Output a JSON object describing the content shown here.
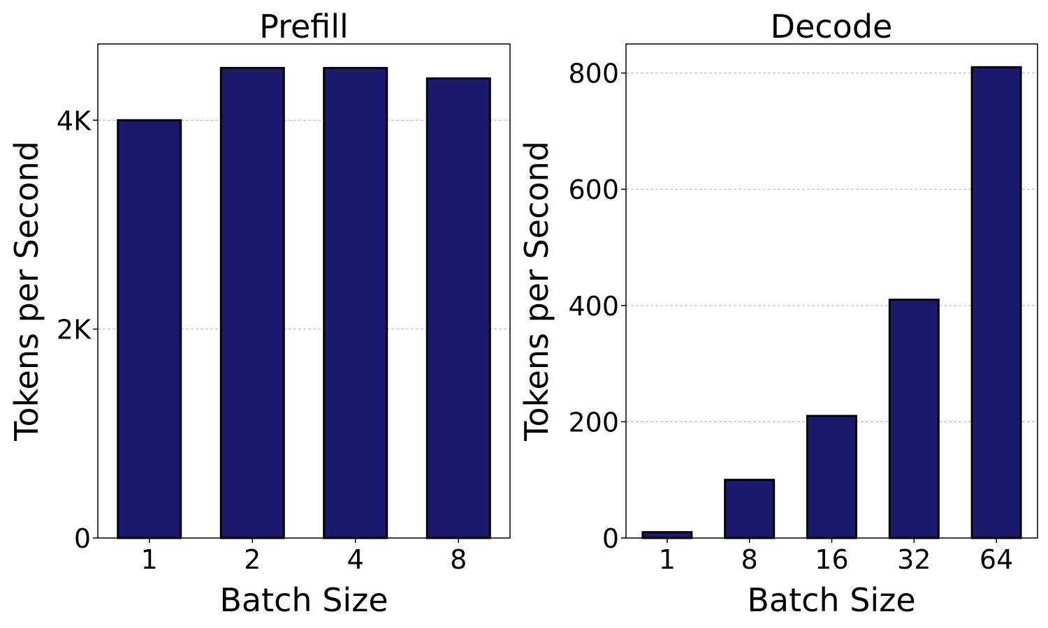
{
  "chart_data": [
    {
      "type": "bar",
      "title": "Prefill",
      "xlabel": "Batch Size",
      "ylabel": "Tokens per Second",
      "categories": [
        "1",
        "2",
        "4",
        "8"
      ],
      "values": [
        4000,
        4500,
        4500,
        4400
      ],
      "ylim": [
        0,
        4730
      ],
      "yticks": [
        0,
        2000,
        4000
      ],
      "ytick_labels": [
        "0",
        "2K",
        "4K"
      ],
      "grid": true,
      "bar_color": "#1b1a6e"
    },
    {
      "type": "bar",
      "title": "Decode",
      "xlabel": "Batch Size",
      "ylabel": "Tokens per Second",
      "categories": [
        "1",
        "8",
        "16",
        "32",
        "64"
      ],
      "values": [
        10,
        100,
        210,
        410,
        810
      ],
      "ylim": [
        0,
        850
      ],
      "yticks": [
        0,
        200,
        400,
        600,
        800
      ],
      "ytick_labels": [
        "0",
        "200",
        "400",
        "600",
        "800"
      ],
      "grid": true,
      "bar_color": "#1b1a6e"
    }
  ]
}
